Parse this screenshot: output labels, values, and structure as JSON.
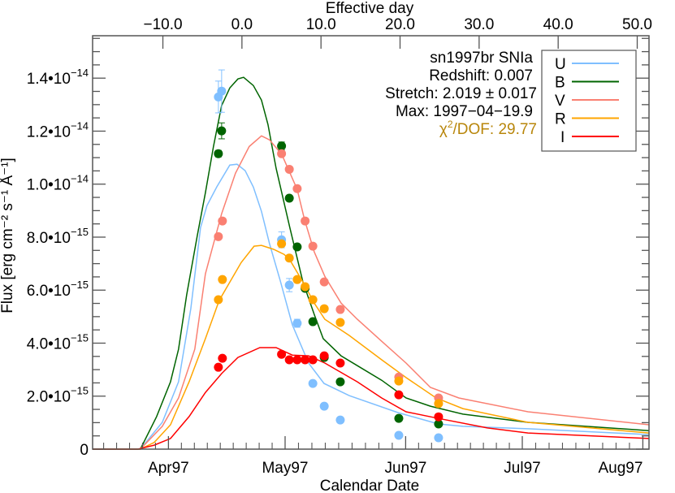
{
  "chart_data": {
    "type": "scatter",
    "x_top_label": "Effective day",
    "x_bottom_label": "Calendar Date",
    "ylabel": "Flux [erg cm⁻² s⁻¹ Å⁻¹]",
    "xlim_effective_day": [
      -18.89,
      51.49
    ],
    "ylim": [
      0,
      1.56e-14
    ],
    "top_ticks": [
      {
        "value": -10,
        "label": "−10.0"
      },
      {
        "value": 0,
        "label": "0.0"
      },
      {
        "value": 10,
        "label": "10.0"
      },
      {
        "value": 20,
        "label": "20.0"
      },
      {
        "value": 30,
        "label": "30.0"
      },
      {
        "value": 40,
        "label": "40.0"
      },
      {
        "value": 50,
        "label": "50.0"
      }
    ],
    "bottom_ticks": [
      {
        "date": "1997-04-01",
        "label": "Apr97"
      },
      {
        "date": "1997-05-01",
        "label": "May97"
      },
      {
        "date": "1997-06-01",
        "label": "Jun97"
      },
      {
        "date": "1997-07-01",
        "label": "Jul97"
      },
      {
        "date": "1997-08-01",
        "label": "Aug97"
      }
    ],
    "y_ticks": [
      {
        "value": 0,
        "mantissa": "0",
        "exponent": ""
      },
      {
        "value": 2e-15,
        "mantissa": "2.0•10",
        "exponent": "−15"
      },
      {
        "value": 4e-15,
        "mantissa": "4.0•10",
        "exponent": "−15"
      },
      {
        "value": 6e-15,
        "mantissa": "6.0•10",
        "exponent": "−15"
      },
      {
        "value": 8e-15,
        "mantissa": "8.0•10",
        "exponent": "−15"
      },
      {
        "value": 1e-14,
        "mantissa": "1.0•10",
        "exponent": "−14"
      },
      {
        "value": 1.2e-14,
        "mantissa": "1.2•10",
        "exponent": "−14"
      },
      {
        "value": 1.4e-14,
        "mantissa": "1.4•10",
        "exponent": "−14"
      }
    ],
    "annotations": {
      "name": "sn1997br  SNIa",
      "redshift": "Redshift: 0.007",
      "stretch": "Stretch: 2.019 ± 0.017",
      "max": "Max: 1997−04−19.9",
      "chi2_symbol": "χ",
      "chi2_sup": "2",
      "chi2_rest": "/DOF: 29.77",
      "chi2_color": "#b8860b"
    },
    "legend_position": "top-right",
    "series": [
      {
        "name": "U",
        "color": "#7fbfff",
        "points": [
          [
            -2.98,
            1.329e-14,
            6e-16
          ],
          [
            -2.57,
            1.351e-14,
            8e-16
          ],
          [
            5.01,
            7.9e-15,
            3e-16
          ],
          [
            5.99,
            6.19e-15,
            2.5e-16
          ],
          [
            6.99,
            4.75e-15,
            1.5e-16
          ],
          [
            8.97,
            2.48e-15,
            1e-16
          ],
          [
            10.41,
            1.62e-15,
            1e-16
          ],
          [
            12.44,
            1.1e-15,
            1e-16
          ],
          [
            19.84,
            5.2e-16,
            8e-17
          ],
          [
            24.87,
            4.3e-16,
            8e-17
          ]
        ],
        "model": [
          [
            -18.89,
            0
          ],
          [
            -12.85,
            0
          ],
          [
            -10.07,
            1.01e-15
          ],
          [
            -8.02,
            2.54e-15
          ],
          [
            -6.47,
            5.3e-15
          ],
          [
            -5.24,
            8.36e-15
          ],
          [
            -4.42,
            9.19e-15
          ],
          [
            -3.19,
            9.89e-15
          ],
          [
            -1.54,
            1.072e-14
          ],
          [
            -0.62,
            1.075e-14
          ],
          [
            0.41,
            1.051e-14
          ],
          [
            1.44,
            9.89e-15
          ],
          [
            2.47,
            8.97e-15
          ],
          [
            3.49,
            7.75e-15
          ],
          [
            4.83,
            6.37e-15
          ],
          [
            6.37,
            4.69e-15
          ],
          [
            8.43,
            3.25e-15
          ],
          [
            10.38,
            2.48e-15
          ],
          [
            13.57,
            2.02e-15
          ],
          [
            19.73,
            1.38e-15
          ],
          [
            24.87,
            9.5e-16
          ],
          [
            27.95,
            8.6e-16
          ],
          [
            36.18,
            7.7e-16
          ],
          [
            51.49,
            5.5e-16
          ]
        ]
      },
      {
        "name": "B",
        "color": "#006400",
        "points": [
          [
            -2.98,
            1.115e-14,
            1.2e-16
          ],
          [
            -2.57,
            1.201e-14,
            3e-16
          ],
          [
            5.01,
            1.144e-14,
            1.5e-16
          ],
          [
            5.99,
            9.47e-15,
            1e-16
          ],
          [
            6.99,
            7.63e-15,
            1e-16
          ],
          [
            7.99,
            6.07e-15,
            1e-16
          ],
          [
            8.97,
            4.81e-15,
            1e-16
          ],
          [
            10.41,
            3.46e-15,
            1e-16
          ],
          [
            12.44,
            2.54e-15,
            1e-16
          ],
          [
            19.84,
            1.16e-15,
            8e-17
          ],
          [
            24.87,
            9.5e-16,
            8e-17
          ]
        ],
        "model": [
          [
            -18.89,
            0
          ],
          [
            -12.85,
            0
          ],
          [
            -10.79,
            1.23e-15
          ],
          [
            -9.04,
            2.54e-15
          ],
          [
            -8.02,
            3.77e-15
          ],
          [
            -6.99,
            5.82e-15
          ],
          [
            -5.65,
            8.06e-15
          ],
          [
            -4.62,
            9.68e-15
          ],
          [
            -3.6,
            1.142e-14
          ],
          [
            -2.57,
            1.296e-14
          ],
          [
            -1.54,
            1.363e-14
          ],
          [
            -0.51,
            1.397e-14
          ],
          [
            0.21,
            1.403e-14
          ],
          [
            1.44,
            1.372e-14
          ],
          [
            2.47,
            1.317e-14
          ],
          [
            3.29,
            1.225e-14
          ],
          [
            4.32,
            1.06e-14
          ],
          [
            6.06,
            8.36e-15
          ],
          [
            7.71,
            6.31e-15
          ],
          [
            9.15,
            5.08e-15
          ],
          [
            10.28,
            4.17e-15
          ],
          [
            12.54,
            3.52e-15
          ],
          [
            14.59,
            3.15e-15
          ],
          [
            17.68,
            2.6e-15
          ],
          [
            20.76,
            1.93e-15
          ],
          [
            23.84,
            1.62e-15
          ],
          [
            27.95,
            1.32e-15
          ],
          [
            36.18,
            1.01e-15
          ],
          [
            51.49,
            7e-16
          ]
        ]
      },
      {
        "name": "V",
        "color": "#fa8072",
        "points": [
          [
            -2.98,
            8.02e-15,
            1e-16
          ],
          [
            -2.47,
            8.61e-15,
            1e-16
          ],
          [
            5.01,
            1.115e-14,
            1e-16
          ],
          [
            5.99,
            1.056e-14,
            1e-16
          ],
          [
            6.99,
            9.83e-15,
            1e-16
          ],
          [
            7.99,
            8.61e-15,
            1e-16
          ],
          [
            8.97,
            7.66e-15,
            1e-16
          ],
          [
            10.41,
            6.31e-15,
            1e-16
          ],
          [
            12.44,
            5.27e-15,
            1e-16
          ],
          [
            19.84,
            2.72e-15,
            8e-17
          ],
          [
            24.87,
            1.93e-15,
            8e-17
          ]
        ],
        "model": [
          [
            -18.89,
            0
          ],
          [
            -12.85,
            0
          ],
          [
            -10.07,
            8.6e-16
          ],
          [
            -8.02,
            1.93e-15
          ],
          [
            -5.96,
            3.77e-15
          ],
          [
            -4.62,
            6.62e-15
          ],
          [
            -2.57,
            8.88e-15
          ],
          [
            -0.82,
            1.041e-14
          ],
          [
            0.92,
            1.142e-14
          ],
          [
            2.47,
            1.182e-14
          ],
          [
            3.49,
            1.167e-14
          ],
          [
            5.04,
            1.112e-14
          ],
          [
            6.99,
            9.8e-15
          ],
          [
            7.91,
            8.67e-15
          ],
          [
            9.15,
            7.44e-15
          ],
          [
            10.48,
            6.52e-15
          ],
          [
            12.54,
            5.51e-15
          ],
          [
            14.59,
            4.9e-15
          ],
          [
            17.68,
            4.07e-15
          ],
          [
            20.76,
            3.25e-15
          ],
          [
            23.84,
            2.33e-15
          ],
          [
            27.44,
            1.93e-15
          ],
          [
            36.18,
            1.41e-15
          ],
          [
            51.49,
            9.2e-16
          ]
        ]
      },
      {
        "name": "R",
        "color": "#ffa500",
        "points": [
          [
            -2.98,
            5.64e-15,
            1e-16
          ],
          [
            -2.47,
            6.4e-15,
            1e-16
          ],
          [
            5.01,
            7.75e-15,
            1e-16
          ],
          [
            5.99,
            7.21e-15,
            1e-16
          ],
          [
            6.99,
            6.4e-15,
            1e-16
          ],
          [
            7.99,
            6.13e-15,
            1e-16
          ],
          [
            8.97,
            5.64e-15,
            1e-16
          ],
          [
            10.41,
            5.3e-15,
            1e-16
          ],
          [
            12.44,
            4.78e-15,
            1e-16
          ],
          [
            19.84,
            2.57e-15,
            8e-17
          ],
          [
            24.87,
            1.72e-15,
            8e-17
          ]
        ],
        "model": [
          [
            -18.89,
            0
          ],
          [
            -12.85,
            0
          ],
          [
            -11.1,
            2.5e-16
          ],
          [
            -9.04,
            9.2e-16
          ],
          [
            -6.68,
            2.54e-15
          ],
          [
            -4.62,
            4.17e-15
          ],
          [
            -2.88,
            5.61e-15
          ],
          [
            -0.1,
            7.04e-15
          ],
          [
            1.54,
            7.66e-15
          ],
          [
            2.47,
            7.69e-15
          ],
          [
            4.01,
            7.54e-15
          ],
          [
            5.34,
            7.35e-15
          ],
          [
            6.06,
            7.14e-15
          ],
          [
            7.71,
            6.31e-15
          ],
          [
            9.15,
            5.51e-15
          ],
          [
            10.48,
            4.9e-15
          ],
          [
            13.57,
            4.29e-15
          ],
          [
            17.68,
            3.37e-15
          ],
          [
            20.76,
            2.7e-15
          ],
          [
            24.56,
            1.93e-15
          ],
          [
            27.95,
            1.53e-15
          ],
          [
            36.18,
            1.01e-15
          ],
          [
            51.49,
            6.1e-16
          ]
        ]
      },
      {
        "name": "I",
        "color": "#ff0000",
        "points": [
          [
            -2.98,
            3.09e-15,
            8e-17
          ],
          [
            -2.47,
            3.43e-15,
            8e-17
          ],
          [
            5.01,
            3.58e-15,
            8e-17
          ],
          [
            5.99,
            3.37e-15,
            8e-17
          ],
          [
            6.99,
            3.37e-15,
            8e-17
          ],
          [
            7.99,
            3.37e-15,
            8e-17
          ],
          [
            8.97,
            3.37e-15,
            8e-17
          ],
          [
            10.41,
            3.52e-15,
            8e-17
          ],
          [
            12.44,
            3.25e-15,
            8e-17
          ],
          [
            19.84,
            2.05e-15,
            8e-17
          ],
          [
            24.87,
            1.22e-15,
            8e-17
          ]
        ],
        "model": [
          [
            -18.89,
            0
          ],
          [
            -13.16,
            0
          ],
          [
            -11.1,
            1.5e-16
          ],
          [
            -9.04,
            4e-16
          ],
          [
            -6.68,
            1.23e-15
          ],
          [
            -4.62,
            2.14e-15
          ],
          [
            -2.57,
            2.85e-15
          ],
          [
            -0.51,
            3.46e-15
          ],
          [
            2.26,
            3.83e-15
          ],
          [
            4.32,
            3.83e-15
          ],
          [
            6.37,
            3.55e-15
          ],
          [
            8.43,
            3.52e-15
          ],
          [
            10.48,
            3.25e-15
          ],
          [
            14.59,
            2.54e-15
          ],
          [
            17.68,
            1.93e-15
          ],
          [
            20.76,
            1.41e-15
          ],
          [
            24.87,
            1.16e-15
          ],
          [
            31.04,
            8e-16
          ],
          [
            36.18,
            6.1e-16
          ],
          [
            51.49,
            4e-16
          ]
        ]
      }
    ]
  }
}
